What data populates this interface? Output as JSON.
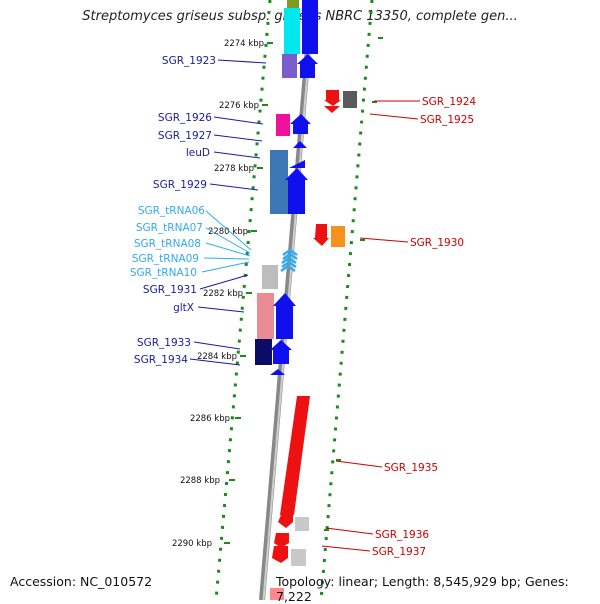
{
  "title": "Streptomyces griseus subsp. griseus NBRC 13350, complete gen...",
  "footer": {
    "accession": "Accession: NC_010572",
    "summary": "Topology: linear; Length: 8,545,929 bp; Genes: 7,222"
  },
  "colors": {
    "left_label": "#1a1aa0",
    "trna_label": "#33aaee",
    "right_label": "#cc0000",
    "kbp_tick": "#1a8a1a"
  },
  "kbp_labels": [
    "2274 kbp",
    "2276 kbp",
    "2278 kbp",
    "2280 kbp",
    "2282 kbp",
    "2284 kbp",
    "2286 kbp",
    "2288 kbp",
    "2290 kbp"
  ],
  "genes_left": [
    "SGR_1923",
    "SGR_1926",
    "SGR_1927",
    "leuD",
    "SGR_1929",
    "SGR_1931",
    "gltX",
    "SGR_1933",
    "SGR_1934"
  ],
  "trnas": [
    "SGR_tRNA06",
    "SGR_tRNA07",
    "SGR_tRNA08",
    "SGR_tRNA09",
    "SGR_tRNA10"
  ],
  "genes_right": [
    "SGR_1924",
    "SGR_1925",
    "SGR_1930",
    "SGR_1935",
    "SGR_1936",
    "SGR_1937"
  ]
}
